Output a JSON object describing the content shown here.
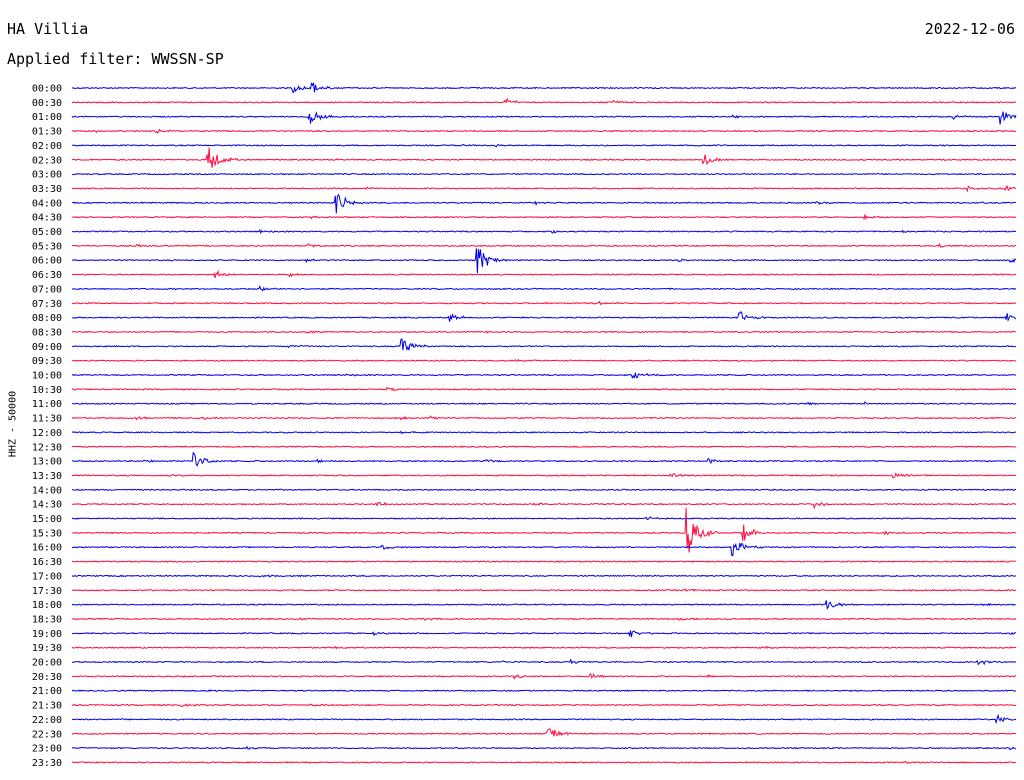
{
  "header": {
    "station": "HA Villia",
    "date": "2022-12-06",
    "filter_label": "Applied filter: WWSSN-SP",
    "channel_label": "HHZ - 50000"
  },
  "colors": {
    "even_trace": "#0000e6",
    "odd_trace": "#ff0a3c",
    "text": "#000000",
    "background": "#ffffff"
  },
  "chart_data": {
    "type": "line",
    "title": "HA Villia",
    "ylabel": "HHZ - 50000",
    "trace_minutes": 30,
    "rows": [
      {
        "time": "00:00",
        "events": [
          {
            "t": 0.235,
            "amp": 0.6
          },
          {
            "t": 0.255,
            "amp": 0.9
          }
        ]
      },
      {
        "time": "00:30",
        "events": [
          {
            "t": 0.46,
            "amp": 0.55
          },
          {
            "t": 0.575,
            "amp": 0.2
          }
        ]
      },
      {
        "time": "01:00",
        "events": [
          {
            "t": 0.25,
            "amp": 1.6
          },
          {
            "t": 0.7,
            "amp": 0.25
          },
          {
            "t": 0.935,
            "amp": 0.3
          },
          {
            "t": 0.985,
            "amp": 1.1
          }
        ]
      },
      {
        "time": "01:30",
        "events": [
          {
            "t": 0.02,
            "amp": 0.3
          },
          {
            "t": 0.09,
            "amp": 0.3
          }
        ]
      },
      {
        "time": "02:00",
        "events": [
          {
            "t": 0.41,
            "amp": 0.15
          },
          {
            "t": 0.45,
            "amp": 0.15
          }
        ]
      },
      {
        "time": "02:30",
        "events": [
          {
            "t": 0.145,
            "amp": 2.2
          },
          {
            "t": 0.67,
            "amp": 0.8
          },
          {
            "t": 0.28,
            "amp": 0.15
          }
        ]
      },
      {
        "time": "03:00",
        "events": []
      },
      {
        "time": "03:30",
        "events": [
          {
            "t": 0.31,
            "amp": 0.2
          },
          {
            "t": 0.95,
            "amp": 0.35
          },
          {
            "t": 0.99,
            "amp": 0.3
          }
        ]
      },
      {
        "time": "04:00",
        "events": [
          {
            "t": 0.28,
            "amp": 1.9
          },
          {
            "t": 0.49,
            "amp": 0.25
          },
          {
            "t": 0.79,
            "amp": 0.25
          }
        ]
      },
      {
        "time": "04:30",
        "events": [
          {
            "t": 0.255,
            "amp": 0.2
          },
          {
            "t": 0.84,
            "amp": 0.35
          }
        ]
      },
      {
        "time": "05:00",
        "events": [
          {
            "t": 0.2,
            "amp": 0.2
          },
          {
            "t": 0.51,
            "amp": 0.25
          },
          {
            "t": 0.88,
            "amp": 0.2
          }
        ]
      },
      {
        "time": "05:30",
        "events": [
          {
            "t": 0.07,
            "amp": 0.2
          },
          {
            "t": 0.25,
            "amp": 0.25
          },
          {
            "t": 0.92,
            "amp": 0.2
          }
        ]
      },
      {
        "time": "06:00",
        "events": [
          {
            "t": 0.43,
            "amp": 2.5
          },
          {
            "t": 0.25,
            "amp": 0.2
          },
          {
            "t": 0.645,
            "amp": 0.2
          },
          {
            "t": 0.995,
            "amp": 0.35
          }
        ]
      },
      {
        "time": "06:30",
        "events": [
          {
            "t": 0.152,
            "amp": 0.55
          },
          {
            "t": 0.23,
            "amp": 0.25
          }
        ]
      },
      {
        "time": "07:00",
        "events": [
          {
            "t": 0.2,
            "amp": 0.35
          }
        ]
      },
      {
        "time": "07:30",
        "events": [
          {
            "t": 0.555,
            "amp": 0.35
          }
        ]
      },
      {
        "time": "08:00",
        "events": [
          {
            "t": 0.4,
            "amp": 0.7
          },
          {
            "t": 0.708,
            "amp": 0.9
          },
          {
            "t": 0.99,
            "amp": 0.75
          }
        ]
      },
      {
        "time": "08:30",
        "events": [
          {
            "t": 0.25,
            "amp": 0.2
          },
          {
            "t": 0.43,
            "amp": 0.15
          }
        ]
      },
      {
        "time": "09:00",
        "events": [
          {
            "t": 0.35,
            "amp": 1.6
          },
          {
            "t": 0.23,
            "amp": 0.25
          }
        ]
      },
      {
        "time": "09:30",
        "events": [
          {
            "t": 0.47,
            "amp": 0.15
          }
        ]
      },
      {
        "time": "10:00",
        "events": [
          {
            "t": 0.595,
            "amp": 0.55
          },
          {
            "t": 0.29,
            "amp": 0.15
          }
        ]
      },
      {
        "time": "10:30",
        "events": [
          {
            "t": 0.335,
            "amp": 0.3
          }
        ]
      },
      {
        "time": "11:00",
        "events": [
          {
            "t": 0.78,
            "amp": 0.2
          },
          {
            "t": 0.84,
            "amp": 0.2
          }
        ]
      },
      {
        "time": "11:30",
        "events": [
          {
            "t": 0.07,
            "amp": 0.2
          },
          {
            "t": 0.14,
            "amp": 0.25
          },
          {
            "t": 0.35,
            "amp": 0.3
          },
          {
            "t": 0.38,
            "amp": 0.3
          }
        ]
      },
      {
        "time": "12:00",
        "events": [
          {
            "t": 0.35,
            "amp": 0.15
          }
        ]
      },
      {
        "time": "12:30",
        "events": []
      },
      {
        "time": "13:00",
        "events": [
          {
            "t": 0.13,
            "amp": 1.3
          },
          {
            "t": 0.075,
            "amp": 0.15
          },
          {
            "t": 0.26,
            "amp": 0.15
          },
          {
            "t": 0.44,
            "amp": 0.15
          },
          {
            "t": 0.675,
            "amp": 0.35
          }
        ]
      },
      {
        "time": "13:30",
        "events": [
          {
            "t": 0.635,
            "amp": 0.4
          },
          {
            "t": 0.87,
            "amp": 0.55
          },
          {
            "t": 0.105,
            "amp": 0.15
          }
        ]
      },
      {
        "time": "14:00",
        "events": []
      },
      {
        "time": "14:30",
        "events": [
          {
            "t": 0.325,
            "amp": 0.3
          },
          {
            "t": 0.49,
            "amp": 0.2
          },
          {
            "t": 0.788,
            "amp": 0.55
          },
          {
            "t": 0.555,
            "amp": 0.15
          }
        ]
      },
      {
        "time": "15:00",
        "events": [
          {
            "t": 0.61,
            "amp": 0.25
          }
        ]
      },
      {
        "time": "15:30",
        "events": [
          {
            "t": 0.652,
            "amp": 3.6
          },
          {
            "t": 0.712,
            "amp": 1.3
          },
          {
            "t": 0.863,
            "amp": 0.2
          }
        ]
      },
      {
        "time": "16:00",
        "events": [
          {
            "t": 0.7,
            "amp": 1.8
          },
          {
            "t": 0.33,
            "amp": 0.3
          }
        ]
      },
      {
        "time": "16:30",
        "events": []
      },
      {
        "time": "17:00",
        "events": [
          {
            "t": 0.2,
            "amp": 0.25
          }
        ]
      },
      {
        "time": "17:30",
        "events": [
          {
            "t": 0.65,
            "amp": 0.25
          }
        ]
      },
      {
        "time": "18:00",
        "events": [
          {
            "t": 0.8,
            "amp": 0.9
          },
          {
            "t": 0.965,
            "amp": 0.2
          }
        ]
      },
      {
        "time": "18:30",
        "events": [
          {
            "t": 0.24,
            "amp": 0.2
          },
          {
            "t": 0.375,
            "amp": 0.2
          },
          {
            "t": 0.645,
            "amp": 0.2
          }
        ]
      },
      {
        "time": "19:00",
        "events": [
          {
            "t": 0.32,
            "amp": 0.25
          },
          {
            "t": 0.592,
            "amp": 0.6
          },
          {
            "t": 0.995,
            "amp": 0.25
          }
        ]
      },
      {
        "time": "19:30",
        "events": [
          {
            "t": 0.28,
            "amp": 0.15
          },
          {
            "t": 0.735,
            "amp": 0.15
          }
        ]
      },
      {
        "time": "20:00",
        "events": [
          {
            "t": 0.53,
            "amp": 0.3
          },
          {
            "t": 0.96,
            "amp": 0.6
          },
          {
            "t": 0.455,
            "amp": 0.15
          }
        ]
      },
      {
        "time": "20:30",
        "events": [
          {
            "t": 0.47,
            "amp": 0.35
          },
          {
            "t": 0.55,
            "amp": 0.35
          },
          {
            "t": 0.675,
            "amp": 0.2
          }
        ]
      },
      {
        "time": "21:00",
        "events": [
          {
            "t": 0.145,
            "amp": 0.15
          }
        ]
      },
      {
        "time": "21:30",
        "events": [
          {
            "t": 0.115,
            "amp": 0.25
          },
          {
            "t": 0.255,
            "amp": 0.15
          }
        ]
      },
      {
        "time": "22:00",
        "events": [
          {
            "t": 0.98,
            "amp": 0.6
          }
        ]
      },
      {
        "time": "22:30",
        "events": [
          {
            "t": 0.505,
            "amp": 1.3
          }
        ]
      },
      {
        "time": "23:00",
        "events": [
          {
            "t": 0.185,
            "amp": 0.25
          },
          {
            "t": 0.995,
            "amp": 0.15
          }
        ]
      },
      {
        "time": "23:30",
        "events": [
          {
            "t": 0.88,
            "amp": 0.15
          }
        ]
      }
    ]
  }
}
